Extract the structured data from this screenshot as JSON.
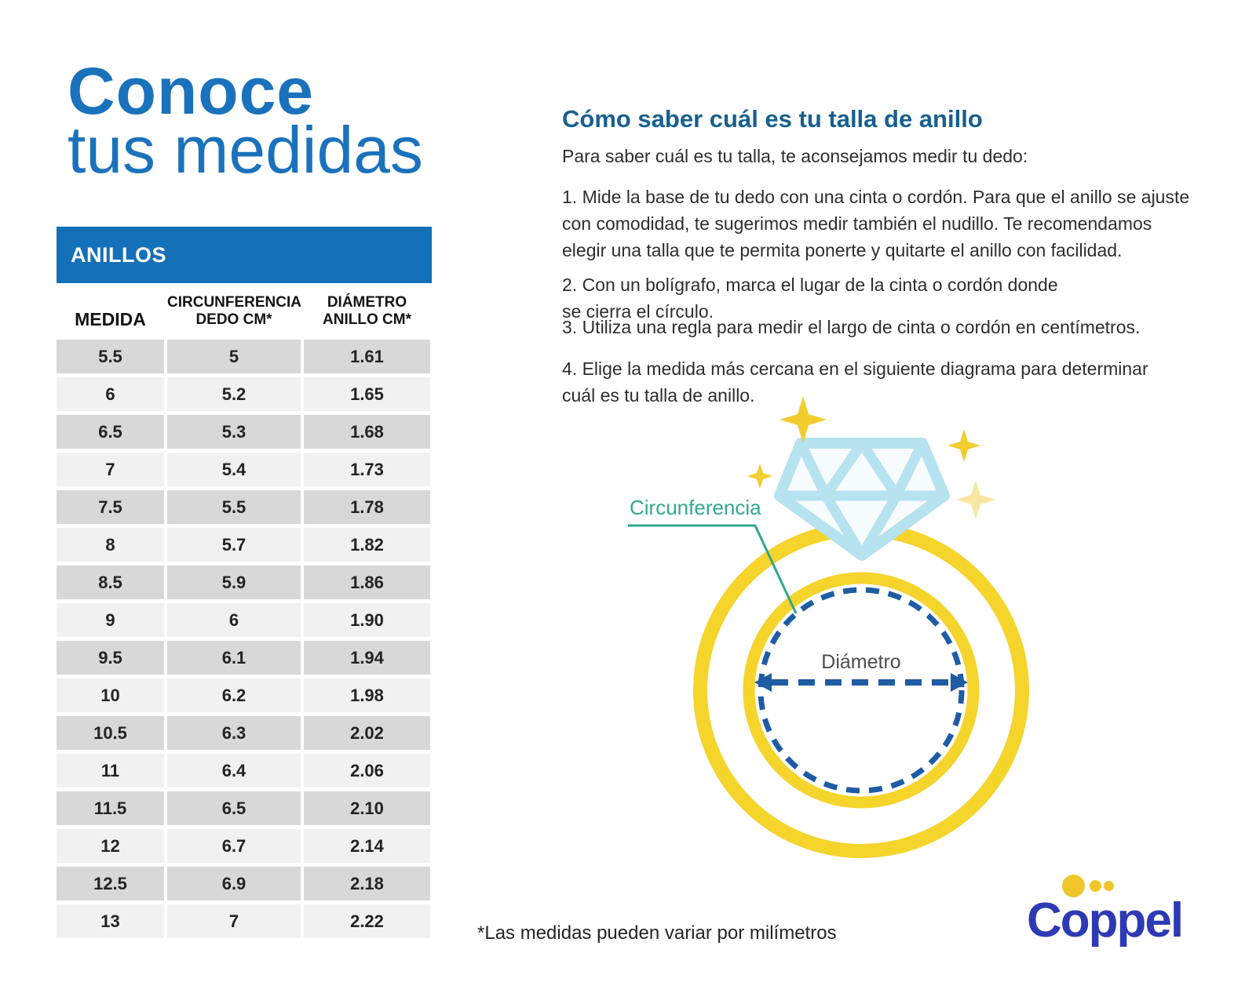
{
  "page": {
    "title_line1": "Conoce",
    "title_line2": "tus medidas",
    "footnote": "*Las medidas pueden variar por milímetros"
  },
  "table": {
    "header": "ANILLOS",
    "columns": [
      {
        "line1": "MEDIDA",
        "line2": ""
      },
      {
        "line1": "CIRCUNFERENCIA",
        "line2": "DEDO CM*"
      },
      {
        "line1": "DIÁMETRO",
        "line2": "ANILLO CM*"
      }
    ],
    "rows": [
      [
        "5.5",
        "5",
        "1.61"
      ],
      [
        "6",
        "5.2",
        "1.65"
      ],
      [
        "6.5",
        "5.3",
        "1.68"
      ],
      [
        "7",
        "5.4",
        "1.73"
      ],
      [
        "7.5",
        "5.5",
        "1.78"
      ],
      [
        "8",
        "5.7",
        "1.82"
      ],
      [
        "8.5",
        "5.9",
        "1.86"
      ],
      [
        "9",
        "6",
        "1.90"
      ],
      [
        "9.5",
        "6.1",
        "1.94"
      ],
      [
        "10",
        "6.2",
        "1.98"
      ],
      [
        "10.5",
        "6.3",
        "2.02"
      ],
      [
        "11",
        "6.4",
        "2.06"
      ],
      [
        "11.5",
        "6.5",
        "2.10"
      ],
      [
        "12",
        "6.7",
        "2.14"
      ],
      [
        "12.5",
        "6.9",
        "2.18"
      ],
      [
        "13",
        "7",
        "2.22"
      ]
    ]
  },
  "instructions": {
    "heading": "Cómo saber cuál es tu talla de anillo",
    "intro": "Para saber cuál es tu talla, te aconsejamos medir tu dedo:",
    "steps": [
      "1. Mide la base de tu dedo con una cinta o cordón. Para que el anillo se ajuste\ncon comodidad, te sugerimos medir también el nudillo. Te recomendamos\nelegir una talla que te permita ponerte y quitarte el anillo con facilidad.",
      "2. Con un bolígrafo, marca el lugar de la cinta o cordón donde\nse cierra el círculo.",
      "3. Utiliza una regla para medir el largo de cinta o cordón en centímetros.",
      "4. Elige la medida más cercana en el siguiente diagrama para determinar\ncuál es tu talla de anillo."
    ]
  },
  "diagram": {
    "circumference_label": "Circunferencia",
    "diameter_label": "Diámetro"
  },
  "logo": {
    "brand": "Coppel"
  },
  "colors": {
    "title_blue": "#1b72bc",
    "heading_blue": "#17608f",
    "bar_blue": "#1470b7",
    "row_dark": "#d9d8d8",
    "row_light": "#f2f1f1",
    "text_dark": "#2d2d2d",
    "teal": "#2fa98c",
    "ring_yellow": "#f5d42c",
    "sparkle_yellow": "#f3cd2e",
    "sparkle_pale": "#f8e7a2",
    "diamond_blue": "#b7e2ef",
    "diamond_fill": "#f7fcfe",
    "dash_blue": "#1e5ca3",
    "gray_label": "#4d4d4d",
    "coppel_blue": "#2e3ab4",
    "coppel_yellow": "#f0c62b"
  }
}
